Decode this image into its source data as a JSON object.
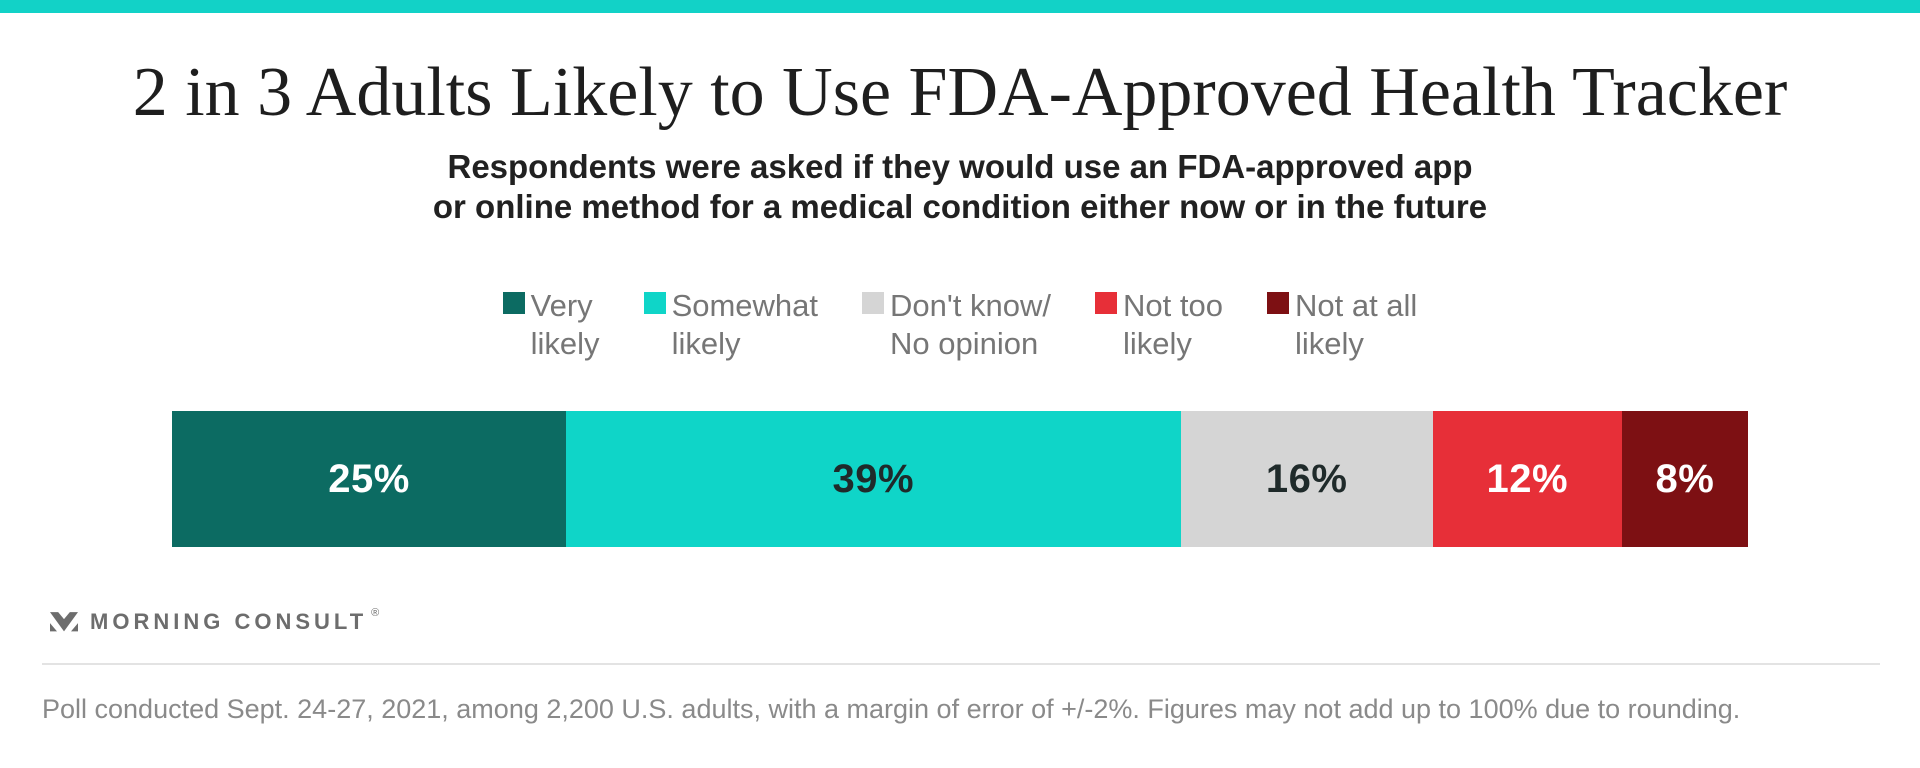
{
  "accent_color": "#12d2c7",
  "chart_data": {
    "type": "bar",
    "orientation": "horizontal_stacked",
    "title": "2 in 3 Adults Likely to Use FDA-Approved Health Tracker",
    "subtitle_lines": [
      "Respondents were asked if they would use an FDA-approved app",
      "or online method for a medical condition either now or in the future"
    ],
    "categories": [
      "Very likely",
      "Somewhat likely",
      "Don't know/No opinion",
      "Not too likely",
      "Not at all likely"
    ],
    "values": [
      25,
      39,
      16,
      12,
      8
    ],
    "unit": "%",
    "data_labels": [
      "25%",
      "39%",
      "16%",
      "12%",
      "8%"
    ],
    "colors": [
      "#0c6b62",
      "#0fd5c8",
      "#d5d5d5",
      "#e72f38",
      "#7d1013"
    ],
    "label_text_colors": [
      "#ffffff",
      "#1f2a2a",
      "#1f2a2a",
      "#ffffff",
      "#ffffff"
    ],
    "legend_position": "top",
    "xlim": [
      0,
      100
    ],
    "grid": false
  },
  "legend": {
    "items": [
      {
        "lines": [
          "Very",
          "likely"
        ],
        "color": "#0c6b62"
      },
      {
        "lines": [
          "Somewhat",
          "likely"
        ],
        "color": "#0fd5c8"
      },
      {
        "lines": [
          "Don't know/",
          "No opinion"
        ],
        "color": "#d5d5d5"
      },
      {
        "lines": [
          "Not too",
          "likely"
        ],
        "color": "#e72f38"
      },
      {
        "lines": [
          "Not at all",
          "likely"
        ],
        "color": "#7d1013"
      }
    ]
  },
  "branding": {
    "logo_text": "MORNING CONSULT",
    "registered_mark": "®",
    "logo_color": "#6d6d6d"
  },
  "footer": {
    "text": "Poll conducted Sept. 24-27, 2021, among 2,200 U.S. adults, with a margin of error of +/-2%. Figures may not add up to 100% due to rounding."
  }
}
